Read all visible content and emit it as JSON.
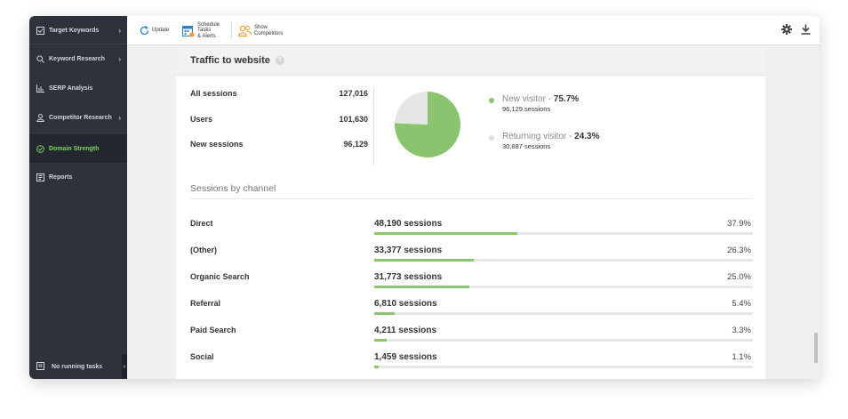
{
  "sidebar": {
    "items": [
      {
        "label": "Target Keywords",
        "icon": "checkbox-icon",
        "chevron": "›"
      },
      {
        "label": "Keyword Research",
        "icon": "search-icon",
        "chevron": "›"
      },
      {
        "label": "SERP Analysis",
        "icon": "bar-chart-icon",
        "chevron": ""
      },
      {
        "label": "Competitor Research",
        "icon": "person-icon",
        "chevron": "›"
      },
      {
        "label": "Domain Strength",
        "icon": "check-circle-icon",
        "chevron": ""
      },
      {
        "label": "Reports",
        "icon": "report-icon",
        "chevron": ""
      }
    ],
    "active": "Domain Strength",
    "bottom_label": "No running tasks",
    "collapse_glyph": "‹"
  },
  "toolbar": {
    "update_label": "Update",
    "schedule_line1": "Schedule",
    "schedule_line2": "Tasks",
    "schedule_line3": "& Alerts",
    "competitors_line1": "Show",
    "competitors_line2": "Competitors",
    "settings_icon": "gear-icon",
    "download_icon": "download-icon"
  },
  "traffic": {
    "title": "Traffic to website",
    "stats": [
      {
        "label": "All sessions",
        "value": "127,016"
      },
      {
        "label": "Users",
        "value": "101,630"
      },
      {
        "label": "New sessions",
        "value": "96,129"
      }
    ],
    "pie": [
      {
        "name": "New visitor",
        "percent": 75.7,
        "percent_label": "75.7%",
        "sessions": "96,129 sessions",
        "color": "#8ac46e"
      },
      {
        "name": "Returning visitor",
        "percent": 24.3,
        "percent_label": "24.3%",
        "sessions": "30,887 sessions",
        "color": "#e6e6e6"
      }
    ]
  },
  "channels": {
    "title": "Sessions by channel",
    "rows": [
      {
        "name": "Direct",
        "sessions": "48,190 sessions",
        "percent_label": "37.9%",
        "fraction": 0.379
      },
      {
        "name": "(Other)",
        "sessions": "33,377 sessions",
        "percent_label": "26.3%",
        "fraction": 0.263
      },
      {
        "name": "Organic Search",
        "sessions": "31,773 sessions",
        "percent_label": "25.0%",
        "fraction": 0.25
      },
      {
        "name": "Referral",
        "sessions": "6,810 sessions",
        "percent_label": "5.4%",
        "fraction": 0.054
      },
      {
        "name": "Paid Search",
        "sessions": "4,211 sessions",
        "percent_label": "3.3%",
        "fraction": 0.033
      },
      {
        "name": "Social",
        "sessions": "1,459 sessions",
        "percent_label": "1.1%",
        "fraction": 0.011
      }
    ]
  }
}
